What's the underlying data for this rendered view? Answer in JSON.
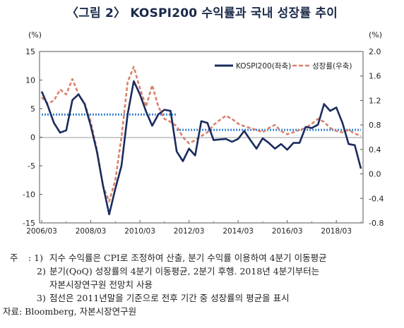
{
  "title": "〈그림 2〉 KOSPI200 수익률과 국내 성장률 추이",
  "chart_data": {
    "type": "line",
    "left_axis": {
      "unit": "(%)",
      "ylim": [
        -15,
        15
      ],
      "ticks": [
        15,
        10,
        5,
        0,
        -5,
        -10,
        -15
      ]
    },
    "right_axis": {
      "unit": "(%)",
      "ylim": [
        -0.8,
        2.0
      ],
      "ticks": [
        "2.0",
        "1.6",
        "1.2",
        "0.8",
        "0.4",
        "0.0",
        "-0.4",
        "-0.8"
      ]
    },
    "x_tick_labels": [
      "2006/03",
      "2008/03",
      "2010/03",
      "2012/03",
      "2014/03",
      "2016/03",
      "2018/03"
    ],
    "legend": [
      "KOSPI200(좌축)",
      "성장률(우축)"
    ],
    "series": [
      {
        "name": "KOSPI200(좌축)",
        "axis": "left",
        "color": "#1a2c5e",
        "values": [
          8.0,
          5.5,
          2.5,
          0.8,
          1.2,
          6.5,
          7.5,
          5.8,
          2.0,
          -2.5,
          -8.5,
          -13.5,
          -9.0,
          -5.0,
          4.0,
          9.8,
          7.5,
          4.5,
          2.0,
          4.0,
          4.8,
          4.6,
          -2.5,
          -4.2,
          -2.0,
          -3.2,
          2.8,
          2.5,
          -0.5,
          -0.4,
          -0.3,
          -0.8,
          -0.3,
          1.1,
          -0.5,
          -2.0,
          -0.2,
          -1.0,
          -2.0,
          -1.2,
          -2.2,
          -1.0,
          -1.0,
          1.8,
          1.6,
          2.2,
          5.8,
          4.6,
          5.2,
          2.5,
          -1.2,
          -1.4,
          -5.5
        ]
      },
      {
        "name": "성장률(우축)",
        "axis": "right",
        "color": "#d9826e",
        "values": [
          1.25,
          1.15,
          1.2,
          1.38,
          1.3,
          1.55,
          1.3,
          1.15,
          0.85,
          0.4,
          -0.2,
          -0.45,
          -0.1,
          0.6,
          1.5,
          1.75,
          1.4,
          1.1,
          1.45,
          1.1,
          0.9,
          0.85,
          0.78,
          0.6,
          0.5,
          0.55,
          0.62,
          0.68,
          0.8,
          0.88,
          0.95,
          0.9,
          0.82,
          0.78,
          0.75,
          0.72,
          0.68,
          0.75,
          0.8,
          0.7,
          0.65,
          0.68,
          0.72,
          0.75,
          0.82,
          0.9,
          0.85,
          0.75,
          0.7,
          0.68,
          0.72,
          0.66,
          0.62
        ]
      }
    ],
    "reference_lines": [
      {
        "axis": "right",
        "value": 0.97,
        "from_index": 0,
        "to_index": 22,
        "color": "#2a7ad0"
      },
      {
        "axis": "right",
        "value": 0.72,
        "from_index": 22,
        "to_index": 52,
        "color": "#2a7ad0"
      }
    ]
  },
  "notes": {
    "marker": "주",
    "items": [
      {
        "num": ": 1)",
        "text": "지수 수익률은 CPI로 조정하여 산출, 분기 수익률 이용하여 4분기 이동평균"
      },
      {
        "num": "2)",
        "text": "분기(QoQ) 성장률의 4분기 이동평균, 2분기 후행. 2018년 4분기부터는"
      },
      {
        "num": "",
        "text": "자본시장연구원 전망치 사용"
      },
      {
        "num": "3)",
        "text": "점선은 2011년말을 기준으로 전후 기간 중 성장률의 평균을 표시"
      }
    ],
    "source": "자료: Bloomberg, 자본시장연구원"
  }
}
